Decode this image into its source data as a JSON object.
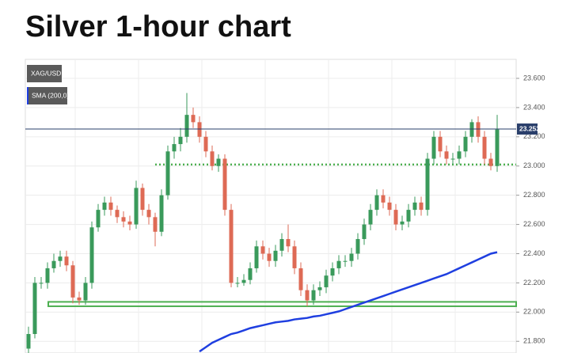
{
  "chart_data": {
    "type": "candlestick",
    "title": "Silver 1-hour chart",
    "symbol": "XAG/USD",
    "up_color": "#3a9a5b",
    "down_color": "#de6a55",
    "ylim": [
      21.72,
      23.73
    ],
    "yticks": [
      {
        "value": 21.8,
        "label": "21.800"
      },
      {
        "value": 22.0,
        "label": "22.000"
      },
      {
        "value": 22.2,
        "label": "22.200"
      },
      {
        "value": 22.4,
        "label": "22.400"
      },
      {
        "value": 22.6,
        "label": "22.600"
      },
      {
        "value": 22.8,
        "label": "22.800"
      },
      {
        "value": 23.0,
        "label": "23.000"
      },
      {
        "value": 23.2,
        "label": "23.200"
      },
      {
        "value": 23.4,
        "label": "23.400"
      },
      {
        "value": 23.6,
        "label": "23.600"
      }
    ],
    "grid": true,
    "open": [
      21.75,
      21.85,
      22.2,
      22.2,
      22.3,
      22.35,
      22.38,
      22.32,
      22.1,
      22.08,
      22.2,
      22.58,
      22.7,
      22.75,
      22.7,
      22.65,
      22.62,
      22.6,
      22.85,
      22.7,
      22.65,
      22.55,
      22.8,
      23.1,
      23.15,
      23.2,
      23.35,
      23.3,
      23.2,
      23.1,
      23.0,
      23.05,
      22.7,
      22.2,
      22.2,
      22.22,
      22.3,
      22.45,
      22.4,
      22.35,
      22.42,
      22.5,
      22.45,
      22.3,
      22.15,
      22.08,
      22.15,
      22.17,
      22.25,
      22.3,
      22.35,
      22.35,
      22.4,
      22.5,
      22.6,
      22.7,
      22.8,
      22.75,
      22.7,
      22.6,
      22.62,
      22.7,
      22.75,
      22.7,
      23.05,
      23.2,
      23.1,
      23.05,
      23.05,
      23.1,
      23.2,
      23.3,
      23.2,
      23.05,
      23.0
    ],
    "high": [
      21.9,
      22.24,
      22.24,
      22.34,
      22.4,
      22.42,
      22.42,
      22.35,
      22.14,
      22.24,
      22.62,
      22.74,
      22.79,
      22.79,
      22.73,
      22.69,
      22.66,
      22.9,
      22.88,
      22.74,
      22.68,
      22.84,
      23.14,
      23.2,
      23.26,
      23.5,
      23.4,
      23.34,
      23.24,
      23.14,
      23.08,
      23.08,
      22.74,
      22.24,
      22.26,
      22.34,
      22.49,
      22.49,
      22.44,
      22.46,
      22.54,
      22.6,
      22.49,
      22.34,
      22.19,
      22.19,
      22.21,
      22.29,
      22.34,
      22.39,
      22.39,
      22.44,
      22.54,
      22.64,
      22.74,
      22.84,
      22.84,
      22.79,
      22.74,
      22.66,
      22.74,
      22.79,
      22.79,
      23.09,
      23.24,
      23.24,
      23.14,
      23.09,
      23.14,
      23.24,
      23.32,
      23.34,
      23.24,
      23.09,
      23.35
    ],
    "low": [
      21.7,
      21.82,
      22.16,
      22.16,
      22.27,
      22.31,
      22.28,
      22.06,
      22.05,
      22.05,
      22.16,
      22.55,
      22.66,
      22.66,
      22.61,
      22.58,
      22.56,
      22.57,
      22.66,
      22.6,
      22.45,
      22.52,
      22.77,
      23.05,
      23.1,
      23.16,
      23.26,
      23.16,
      23.06,
      22.97,
      22.96,
      22.66,
      22.17,
      22.17,
      22.18,
      22.19,
      22.27,
      22.36,
      22.31,
      22.31,
      22.38,
      22.41,
      22.26,
      22.11,
      22.04,
      22.05,
      22.11,
      22.13,
      22.21,
      22.26,
      22.31,
      22.31,
      22.36,
      22.46,
      22.56,
      22.66,
      22.71,
      22.66,
      22.56,
      22.56,
      22.58,
      22.66,
      22.66,
      22.66,
      23.01,
      23.06,
      23.01,
      23.01,
      23.01,
      23.06,
      23.16,
      23.16,
      23.01,
      22.97,
      22.96
    ],
    "close": [
      21.85,
      22.2,
      22.2,
      22.3,
      22.35,
      22.38,
      22.32,
      22.1,
      22.08,
      22.2,
      22.58,
      22.7,
      22.75,
      22.7,
      22.65,
      22.62,
      22.6,
      22.85,
      22.7,
      22.65,
      22.55,
      22.8,
      23.1,
      23.15,
      23.2,
      23.35,
      23.3,
      23.2,
      23.1,
      23.0,
      23.05,
      22.7,
      22.2,
      22.2,
      22.22,
      22.3,
      22.45,
      22.4,
      22.35,
      22.42,
      22.5,
      22.45,
      22.3,
      22.15,
      22.08,
      22.15,
      22.17,
      22.25,
      22.3,
      22.35,
      22.35,
      22.4,
      22.5,
      22.6,
      22.7,
      22.8,
      22.75,
      22.7,
      22.6,
      22.62,
      22.7,
      22.75,
      22.7,
      23.05,
      23.2,
      23.1,
      23.05,
      23.05,
      23.1,
      23.2,
      23.3,
      23.2,
      23.05,
      23.0,
      23.25
    ],
    "series": [
      {
        "name": "SMA (200,0)",
        "color": "#1f3fe0",
        "values": [
          null,
          null,
          null,
          null,
          null,
          null,
          null,
          null,
          null,
          null,
          null,
          null,
          null,
          null,
          null,
          null,
          null,
          null,
          null,
          null,
          null,
          null,
          null,
          null,
          null,
          null,
          null,
          21.73,
          21.76,
          21.79,
          21.81,
          21.83,
          21.85,
          21.86,
          21.875,
          21.89,
          21.9,
          21.91,
          21.92,
          21.93,
          21.935,
          21.94,
          21.95,
          21.955,
          21.96,
          21.97,
          21.975,
          21.985,
          21.995,
          22.005,
          22.02,
          22.035,
          22.05,
          22.065,
          22.08,
          22.095,
          22.11,
          22.125,
          22.14,
          22.155,
          22.17,
          22.185,
          22.2,
          22.215,
          22.23,
          22.245,
          22.26,
          22.28,
          22.3,
          22.32,
          22.34,
          22.36,
          22.38,
          22.4,
          22.41
        ]
      }
    ],
    "price_line": {
      "value": 23.253,
      "label": "23.253",
      "color": "#2a3f6b"
    },
    "resistance": {
      "value": 23.01,
      "color": "#4caf50"
    },
    "support_zone": {
      "values": [
        22.04,
        22.07
      ],
      "color": "#4caf50"
    }
  }
}
